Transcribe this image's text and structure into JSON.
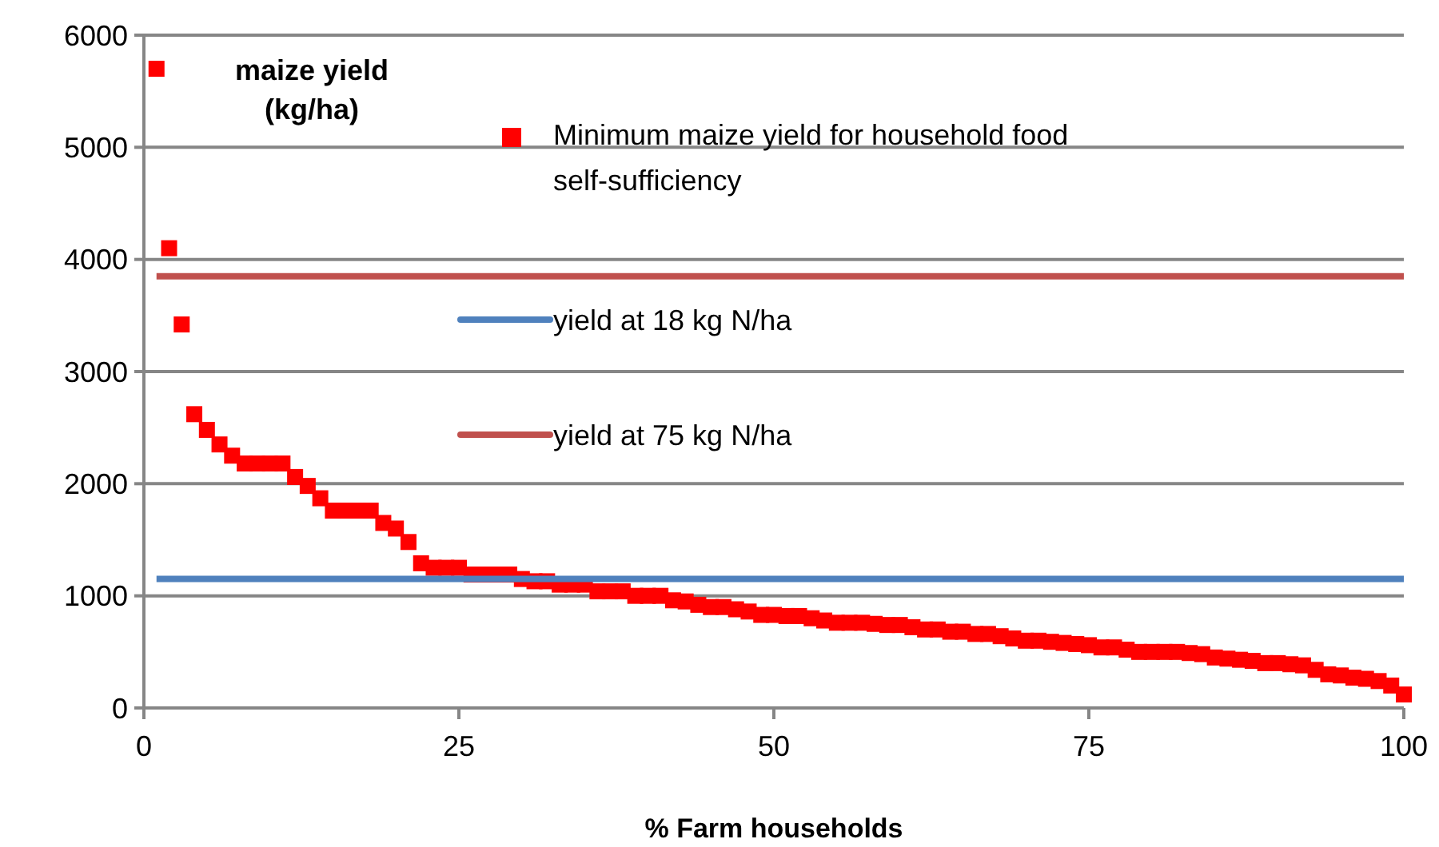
{
  "chart_data": {
    "type": "scatter",
    "xlabel": "% Farm households",
    "ylabel": "maize yield (kg/ha)",
    "xlim": [
      0,
      100
    ],
    "xticks": [
      0,
      25,
      50,
      75,
      100
    ],
    "ylim": [
      0,
      6000
    ],
    "yticks": [
      0,
      1000,
      2000,
      3000,
      4000,
      5000,
      6000
    ],
    "grid": "y",
    "legend": "top right",
    "series": [
      {
        "name": "Minimum maize yield for household food self-sufficiency",
        "color": "#ff0000",
        "marker": "square",
        "x": [
          1,
          2,
          3,
          4,
          5,
          6,
          7,
          8,
          9,
          10,
          11,
          12,
          13,
          14,
          15,
          16,
          17,
          18,
          19,
          20,
          21,
          22,
          23,
          24,
          25,
          26,
          27,
          28,
          29,
          30,
          31,
          32,
          33,
          34,
          35,
          36,
          37,
          38,
          39,
          40,
          41,
          42,
          43,
          44,
          45,
          46,
          47,
          48,
          49,
          50,
          51,
          52,
          53,
          54,
          55,
          56,
          57,
          58,
          59,
          60,
          61,
          62,
          63,
          64,
          65,
          66,
          67,
          68,
          69,
          70,
          71,
          72,
          73,
          74,
          75,
          76,
          77,
          78,
          79,
          80,
          81,
          82,
          83,
          84,
          85,
          86,
          87,
          88,
          89,
          90,
          91,
          92,
          93,
          94,
          95,
          96,
          97,
          98,
          99,
          100
        ],
        "values": [
          5700,
          4100,
          3420,
          2620,
          2480,
          2350,
          2250,
          2180,
          2180,
          2180,
          2180,
          2060,
          1980,
          1870,
          1760,
          1760,
          1760,
          1760,
          1650,
          1600,
          1480,
          1290,
          1250,
          1250,
          1250,
          1190,
          1190,
          1190,
          1190,
          1150,
          1130,
          1130,
          1100,
          1100,
          1100,
          1040,
          1040,
          1040,
          1000,
          1000,
          1000,
          960,
          950,
          920,
          900,
          900,
          880,
          860,
          830,
          830,
          820,
          820,
          800,
          780,
          760,
          760,
          760,
          750,
          740,
          740,
          720,
          700,
          700,
          680,
          680,
          660,
          660,
          640,
          620,
          600,
          600,
          590,
          580,
          570,
          560,
          540,
          540,
          520,
          500,
          500,
          500,
          500,
          490,
          480,
          450,
          440,
          430,
          420,
          400,
          400,
          390,
          380,
          340,
          300,
          290,
          270,
          260,
          240,
          200,
          120
        ]
      },
      {
        "name": "yield at 18 kg N/ha",
        "color": "#4f81bd",
        "type": "line",
        "marker": "none",
        "x": [
          1,
          100
        ],
        "values": [
          1150,
          1150
        ]
      },
      {
        "name": "yield at 75 kg N/ha",
        "color": "#c0504d",
        "type": "line",
        "marker": "none",
        "x": [
          1,
          100
        ],
        "values": [
          3850,
          3850
        ]
      }
    ]
  }
}
